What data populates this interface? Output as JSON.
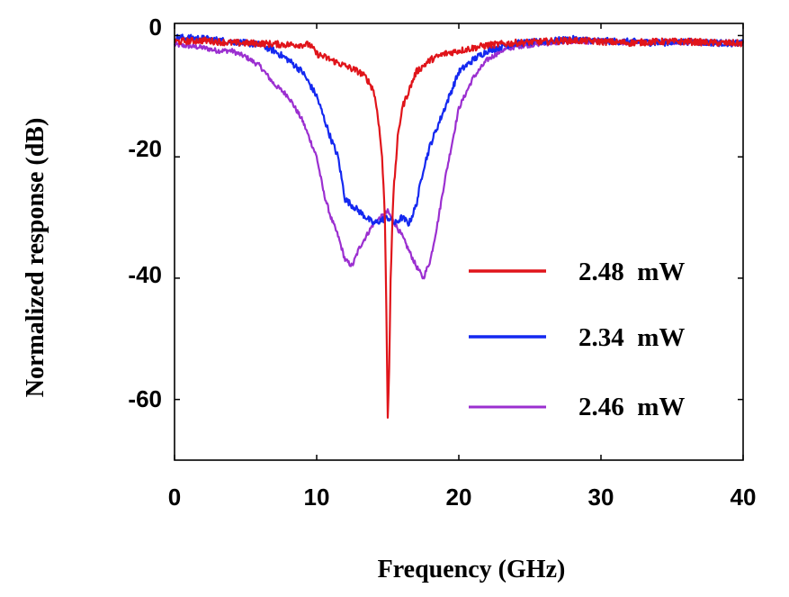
{
  "chart_data": {
    "type": "line",
    "title": "",
    "xlabel": "Frequency (GHz)",
    "ylabel": "Normalized response (dB)",
    "xlim": [
      0,
      40
    ],
    "ylim": [
      -70,
      2
    ],
    "xticks": [
      0,
      10,
      20,
      30,
      40
    ],
    "xtick_labels": [
      "0",
      "10",
      "20",
      "30",
      "40"
    ],
    "yticks": [
      0,
      -20,
      -40,
      -60
    ],
    "ytick_labels": [
      "0",
      "-20",
      "-40",
      "-60"
    ],
    "grid": false,
    "legend_position": "center-right",
    "series": [
      {
        "name": "2.48  mW",
        "color": "#e0141a",
        "noise": 0.55,
        "x": [
          0,
          2,
          4,
          6,
          8,
          9.5,
          10,
          11,
          12,
          13,
          13.5,
          14,
          14.3,
          14.6,
          14.8,
          14.9,
          15.0,
          15.1,
          15.2,
          15.4,
          15.7,
          16,
          16.5,
          17,
          18,
          19,
          20,
          22,
          24,
          26,
          28,
          30,
          32,
          34,
          36,
          38,
          40
        ],
        "y": [
          -1,
          -0.8,
          -1.2,
          -1.3,
          -1.5,
          -1.5,
          -3,
          -4,
          -5,
          -6,
          -7,
          -9,
          -13,
          -20,
          -30,
          -45,
          -63,
          -55,
          -40,
          -26,
          -17,
          -12,
          -9,
          -6,
          -4,
          -3,
          -2.5,
          -1.6,
          -1.2,
          -1,
          -0.8,
          -1,
          -1.2,
          -1,
          -1,
          -1.2,
          -1.3
        ]
      },
      {
        "name": "2.34  mW",
        "color": "#1428f0",
        "noise": 0.55,
        "x": [
          0,
          2,
          4,
          6,
          7,
          8,
          9,
          10,
          11,
          11.5,
          12,
          13,
          14,
          15,
          15.5,
          16,
          16.5,
          17,
          17.5,
          18,
          19,
          20,
          21,
          22,
          23,
          24,
          26,
          28,
          30,
          32,
          34,
          36,
          38,
          40
        ],
        "y": [
          -0.3,
          -0.5,
          -1,
          -1.5,
          -2.5,
          -4,
          -6,
          -10,
          -17,
          -20,
          -27,
          -29,
          -31,
          -30,
          -31,
          -30,
          -31,
          -28,
          -22,
          -18,
          -12,
          -6,
          -4,
          -2.5,
          -1.8,
          -1.3,
          -1,
          -0.6,
          -0.9,
          -1,
          -1.2,
          -1,
          -1.2,
          -1.3
        ]
      },
      {
        "name": "2.46  mW",
        "color": "#9b2fd0",
        "noise": 0.4,
        "x": [
          0,
          2,
          3,
          4,
          5,
          6,
          7,
          8,
          9,
          10,
          10.5,
          11,
          11.5,
          12,
          12.5,
          13,
          14,
          15,
          16,
          17,
          17.5,
          18,
          18.5,
          19,
          19.5,
          20,
          21,
          22,
          23,
          24,
          26,
          28,
          30,
          32,
          34,
          36,
          38,
          40
        ],
        "y": [
          -1.5,
          -2,
          -2.5,
          -2.5,
          -3.5,
          -5,
          -8,
          -10,
          -14,
          -20,
          -26,
          -30,
          -33,
          -37,
          -38,
          -35,
          -31,
          -29,
          -33,
          -38,
          -40,
          -37,
          -31,
          -24,
          -18,
          -12,
          -7,
          -4,
          -2.5,
          -1.8,
          -1.3,
          -1,
          -1,
          -1.2,
          -1,
          -1.1,
          -1.2,
          -1.3
        ]
      }
    ]
  }
}
